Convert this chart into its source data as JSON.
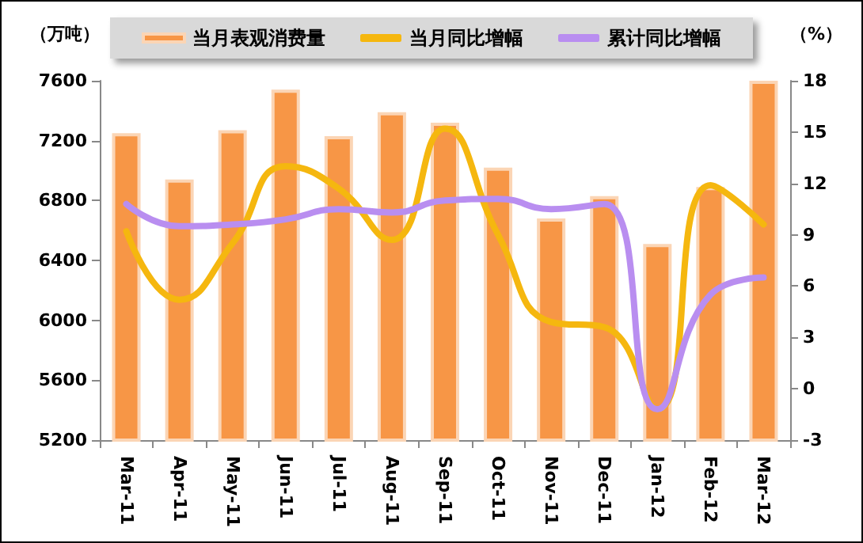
{
  "chart_data": {
    "type": "bar",
    "categories": [
      "Mar-11",
      "Apr-11",
      "May-11",
      "Jun-11",
      "Jul-11",
      "Aug-11",
      "Sep-11",
      "Oct-11",
      "Nov-11",
      "Dec-11",
      "Jan-12",
      "Feb-12",
      "Mar-12"
    ],
    "series": [
      {
        "name": "当月表观消费量",
        "color": "#f79646",
        "values": [
          7250,
          6940,
          7270,
          7540,
          7230,
          7390,
          7320,
          7020,
          6680,
          6830,
          6510,
          6890,
          7600
        ]
      },
      {
        "name": "当月同比增幅",
        "type": "line",
        "axis": "y2",
        "color": "#f5b70f",
        "values": [
          9.2,
          5.2,
          8.5,
          13.0,
          11.7,
          8.7,
          15.2,
          9.0,
          3.9,
          3.6,
          -1.2,
          11.9,
          9.6
        ]
      },
      {
        "name": "累计同比增幅",
        "type": "line",
        "axis": "y2",
        "color": "#b98ef0",
        "values": [
          10.8,
          9.5,
          9.6,
          9.9,
          10.5,
          10.3,
          11.0,
          11.1,
          10.5,
          10.8,
          -1.2,
          5.5,
          6.5
        ]
      }
    ],
    "ylabel": "（万吨）",
    "y2label": "（%）",
    "ylim": [
      5200,
      7600
    ],
    "yticks": [
      5200,
      5600,
      6000,
      6400,
      6800,
      7200,
      7600
    ],
    "y2lim": [
      -3,
      18
    ],
    "y2ticks": [
      -3,
      0,
      3,
      6,
      9,
      12,
      15,
      18
    ],
    "legend": "top",
    "grid": false,
    "marker": "none",
    "line_style": "solid"
  }
}
